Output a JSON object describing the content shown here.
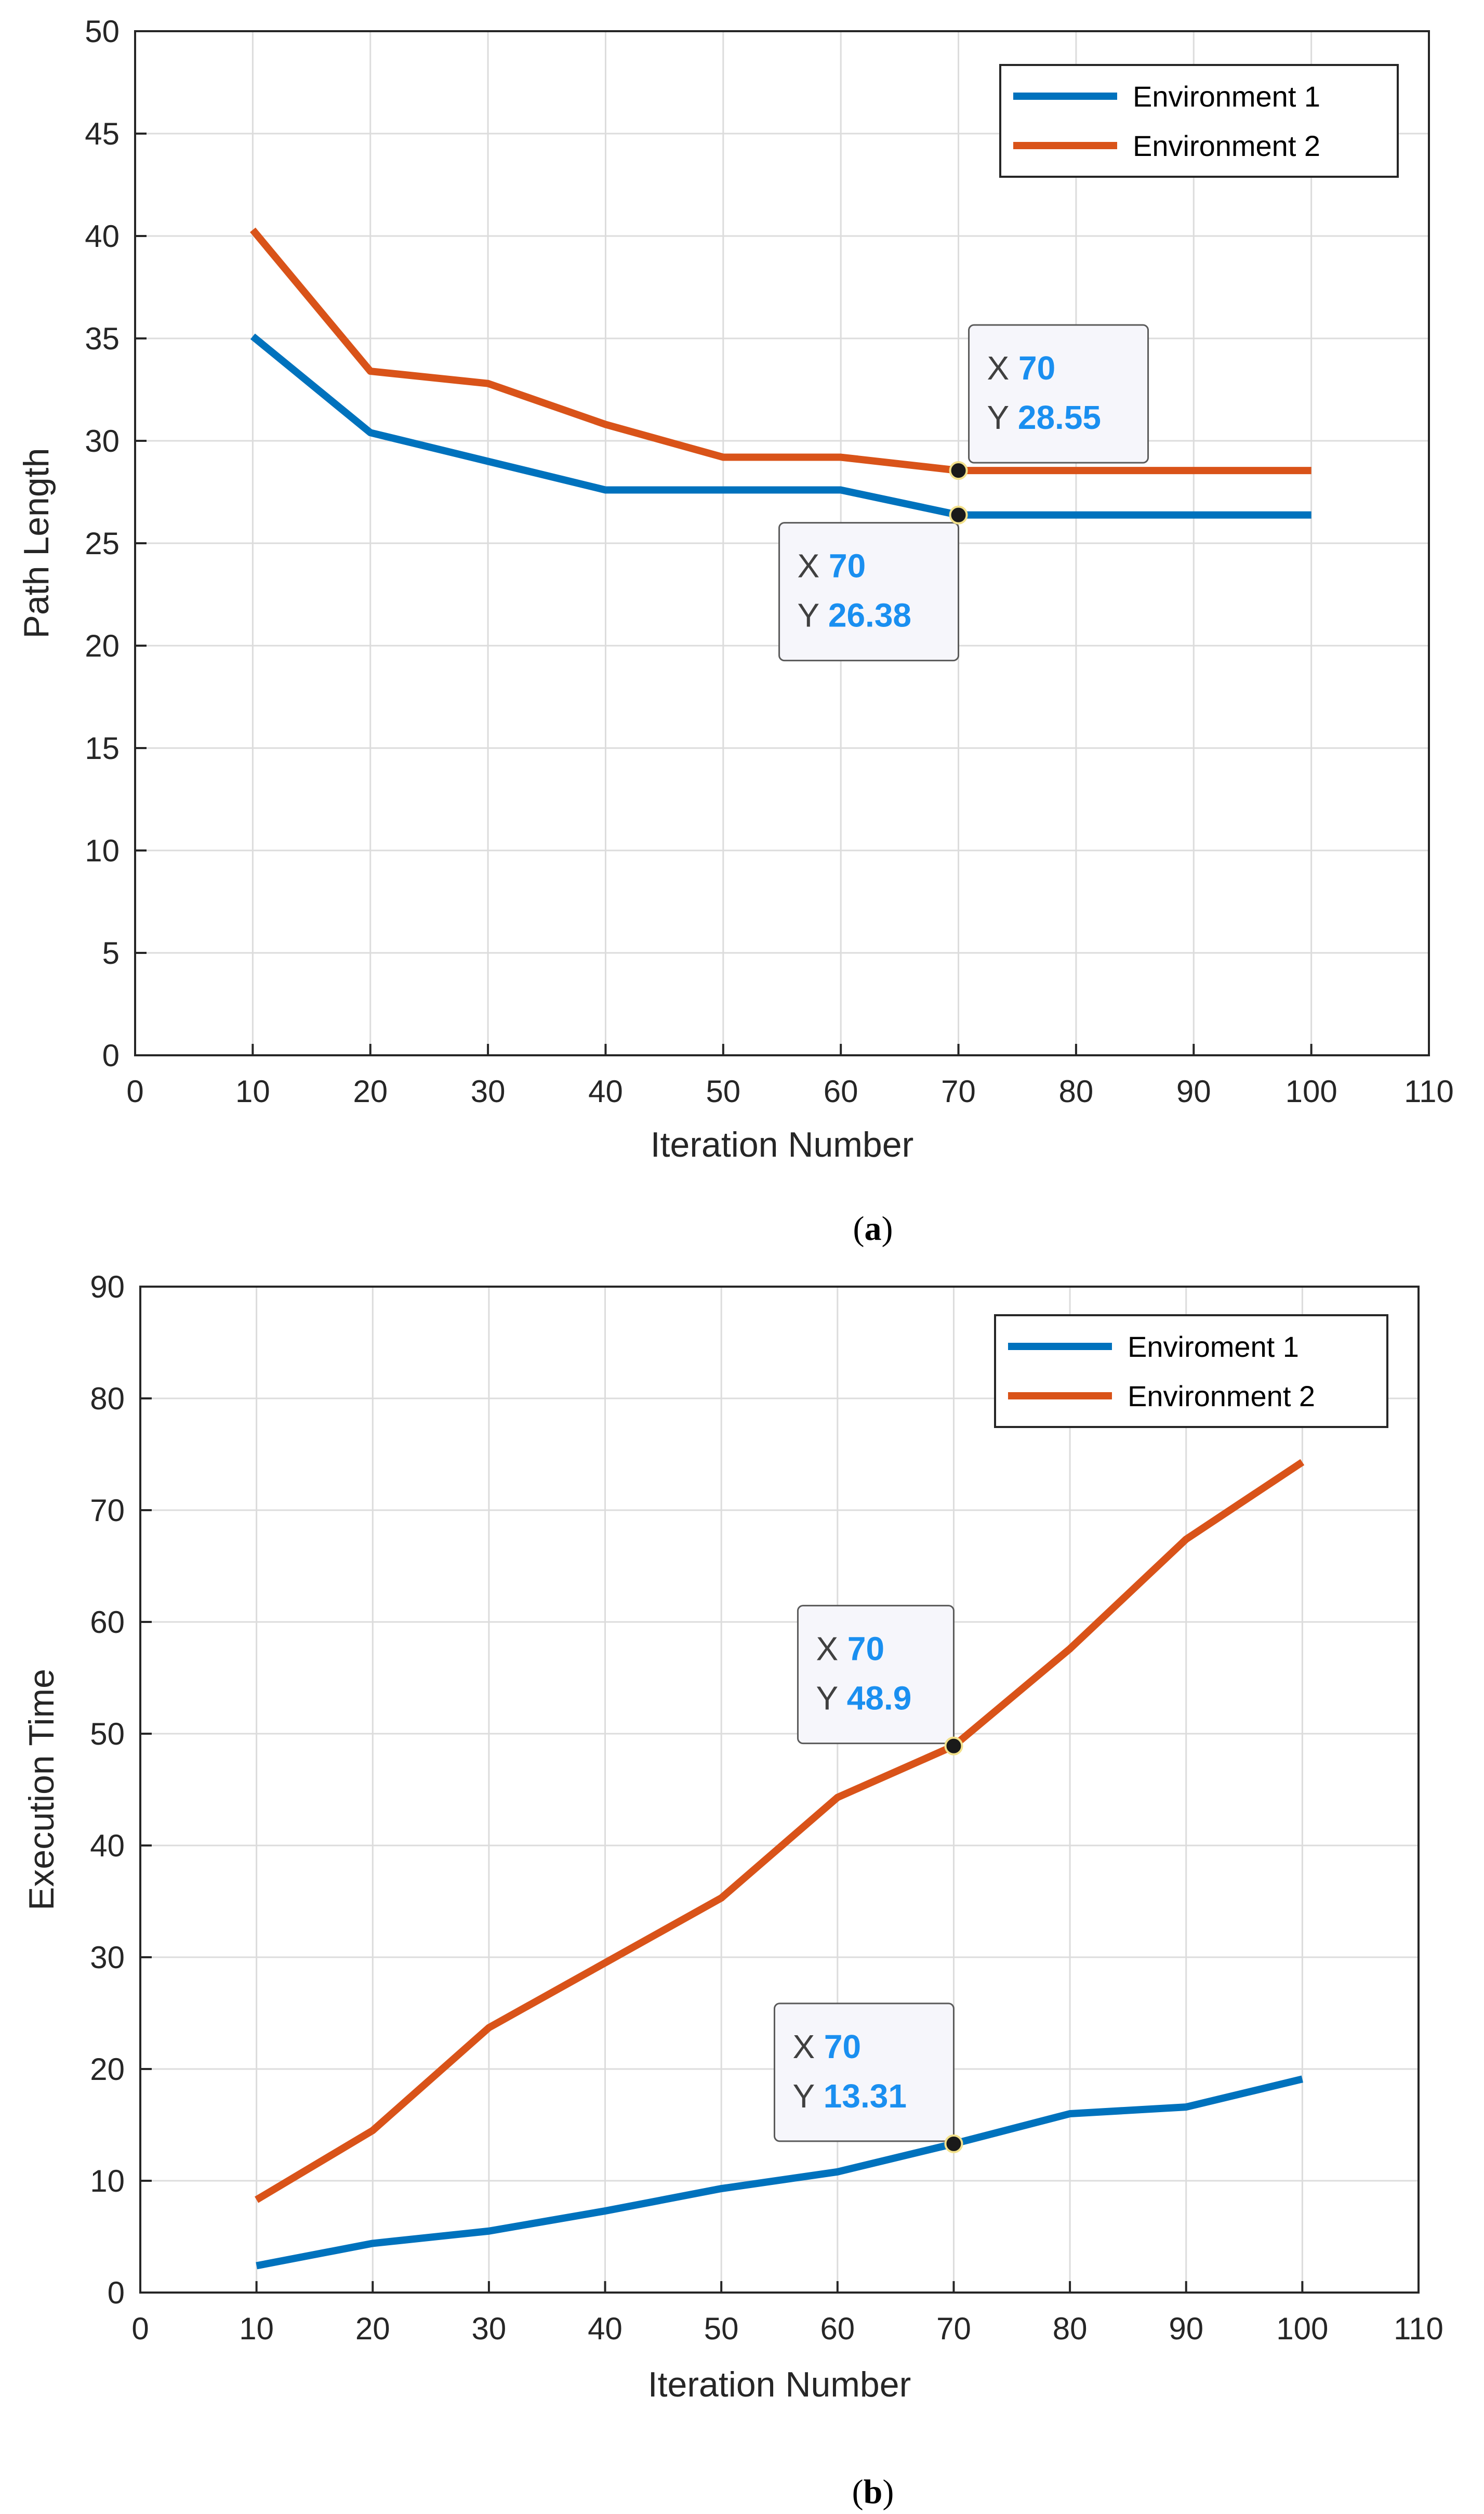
{
  "figure": {
    "panel_a_label": "a",
    "panel_b_label": "b"
  },
  "colors": {
    "series1": "#0072bd",
    "series2": "#d95319",
    "grid": "#dcdcdc",
    "axis": "#262626",
    "tip_value": "#1a8ff0"
  },
  "chart_data": [
    {
      "type": "line",
      "xlabel": "Iteration Number",
      "ylabel": "Path Length",
      "xlim": [
        0,
        110
      ],
      "ylim": [
        0,
        50
      ],
      "xticks": [
        0,
        10,
        20,
        30,
        40,
        50,
        60,
        70,
        80,
        90,
        100,
        110
      ],
      "yticks": [
        0,
        5,
        10,
        15,
        20,
        25,
        30,
        35,
        40,
        45,
        50
      ],
      "grid": true,
      "legend_position": "top-right",
      "x": [
        10,
        20,
        30,
        40,
        50,
        60,
        70,
        80,
        90,
        100
      ],
      "series": [
        {
          "name": "Environment 1",
          "color": "#0072bd",
          "values": [
            35.1,
            30.4,
            29.0,
            27.6,
            27.6,
            27.6,
            26.38,
            26.38,
            26.38,
            26.38
          ]
        },
        {
          "name": "Environment 2",
          "color": "#d95319",
          "values": [
            40.3,
            33.4,
            32.8,
            30.8,
            29.2,
            29.2,
            28.55,
            28.55,
            28.55,
            28.55
          ]
        }
      ],
      "annotations": [
        {
          "series": 1,
          "x": 70,
          "y": 28.55,
          "x_label": "X",
          "y_label": "Y",
          "x_text": "70",
          "y_text": "28.55",
          "placement": "above-right"
        },
        {
          "series": 0,
          "x": 70,
          "y": 26.38,
          "x_label": "X",
          "y_label": "Y",
          "x_text": "70",
          "y_text": "26.38",
          "placement": "below-left"
        }
      ]
    },
    {
      "type": "line",
      "xlabel": "Iteration Number",
      "ylabel": "Execution Time",
      "xlim": [
        0,
        110
      ],
      "ylim": [
        0,
        90
      ],
      "xticks": [
        0,
        10,
        20,
        30,
        40,
        50,
        60,
        70,
        80,
        90,
        100,
        110
      ],
      "yticks": [
        0,
        10,
        20,
        30,
        40,
        50,
        60,
        70,
        80,
        90
      ],
      "grid": true,
      "legend_position": "top-right",
      "x": [
        10,
        20,
        30,
        40,
        50,
        60,
        70,
        80,
        90,
        100
      ],
      "series": [
        {
          "name": "Enviroment 1",
          "color": "#0072bd",
          "values": [
            2.4,
            4.4,
            5.5,
            7.3,
            9.3,
            10.8,
            13.31,
            16.0,
            16.6,
            19.1
          ]
        },
        {
          "name": "Environment 2",
          "color": "#d95319",
          "values": [
            8.3,
            14.5,
            23.7,
            29.5,
            35.3,
            44.3,
            48.9,
            57.6,
            67.4,
            74.3
          ]
        }
      ],
      "annotations": [
        {
          "series": 1,
          "x": 70,
          "y": 48.9,
          "x_label": "X",
          "y_label": "Y",
          "x_text": "70",
          "y_text": "48.9",
          "placement": "above-left"
        },
        {
          "series": 0,
          "x": 70,
          "y": 13.31,
          "x_label": "X",
          "y_label": "Y",
          "x_text": "70",
          "y_text": "13.31",
          "placement": "above-left"
        }
      ]
    }
  ]
}
